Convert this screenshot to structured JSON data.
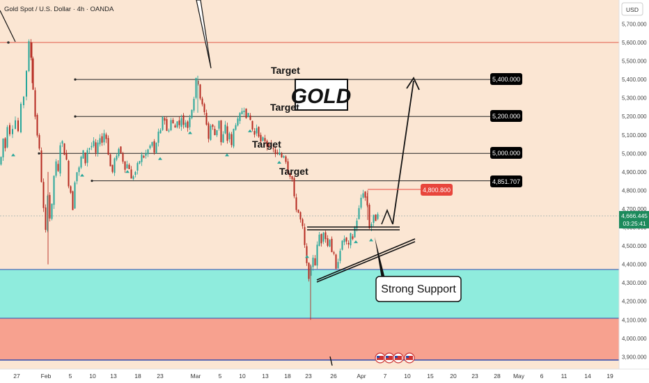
{
  "header": {
    "symbol": "Gold Spot / U.S. Dollar · 4h · OANDA",
    "currency": "USD"
  },
  "price_axis": {
    "ticks": [
      "5,700.000",
      "5,600.000",
      "5,500.000",
      "5,400.000",
      "5,300.000",
      "5,200.000",
      "5,100.000",
      "5,000.000",
      "4,900.000",
      "4,800.000",
      "4,700.000",
      "4,600.000",
      "4,500.000",
      "4,400.000",
      "4,300.000",
      "4,200.000",
      "4,100.000",
      "4,000.000",
      "3,900.000"
    ],
    "current_price": "4,666.445",
    "countdown": "03:25:41"
  },
  "time_axis": {
    "ticks": [
      "27",
      "Feb",
      "5",
      "10",
      "13",
      "18",
      "23",
      "Mar",
      "5",
      "10",
      "13",
      "18",
      "23",
      "26",
      "Apr",
      "7",
      "10",
      "15",
      "20",
      "23",
      "28",
      "May",
      "6",
      "11",
      "14",
      "19"
    ]
  },
  "annotations": {
    "title_box": "GOLD",
    "targets": [
      "Target",
      "Target",
      "Target",
      "Target"
    ],
    "target_badges": [
      "5,400.000",
      "5,200.000",
      "5,000.000",
      "4,851.707"
    ],
    "high_badge": "4,800.800",
    "support_callout": "Strong Support"
  },
  "colors": {
    "background": "#fbe6d3",
    "support_zone": "#8fecdd",
    "resistance_zone": "#f7a18f",
    "up_candle": "#26a69a",
    "down_candle": "#b5281f",
    "high_badge": "#e8453c",
    "price_badge": "#1c8a5c",
    "zone_border": "#2e4ab0",
    "top_line": "#e05a4a"
  },
  "chart_data": {
    "type": "candlestick",
    "title": "Gold Spot / U.S. Dollar · 4h · OANDA",
    "ylabel": "USD",
    "ylim": [
      3870,
      5820
    ],
    "x_ticks": [
      "27",
      "Feb",
      "5",
      "10",
      "13",
      "18",
      "23",
      "Mar",
      "5",
      "10",
      "13",
      "18",
      "23",
      "26",
      "Apr",
      "7",
      "10",
      "15",
      "20",
      "23",
      "28",
      "May",
      "6",
      "11",
      "14",
      "19"
    ],
    "path": [
      [
        0,
        4940
      ],
      [
        3,
        4980
      ],
      [
        6,
        5080
      ],
      [
        9,
        5030
      ],
      [
        12,
        5150
      ],
      [
        16,
        5110
      ],
      [
        20,
        5140
      ],
      [
        24,
        5180
      ],
      [
        28,
        5120
      ],
      [
        32,
        5260
      ],
      [
        36,
        5310
      ],
      [
        40,
        5450
      ],
      [
        43,
        5600
      ],
      [
        46,
        5520
      ],
      [
        49,
        5350
      ],
      [
        52,
        5200
      ],
      [
        55,
        5100
      ],
      [
        58,
        5020
      ],
      [
        61,
        4850
      ],
      [
        64,
        4700
      ],
      [
        67,
        4580
      ],
      [
        70,
        4780
      ],
      [
        73,
        4650
      ],
      [
        76,
        4720
      ],
      [
        79,
        4880
      ],
      [
        82,
        4950
      ],
      [
        85,
        4900
      ],
      [
        88,
        5050
      ],
      [
        91,
        5060
      ],
      [
        94,
        5000
      ],
      [
        97,
        4960
      ],
      [
        100,
        4830
      ],
      [
        103,
        4790
      ],
      [
        106,
        4700
      ],
      [
        109,
        4850
      ],
      [
        112,
        4900
      ],
      [
        115,
        4920
      ],
      [
        118,
        4980
      ],
      [
        121,
        5010
      ],
      [
        124,
        4950
      ],
      [
        127,
        5020
      ],
      [
        130,
        5030
      ],
      [
        133,
        5040
      ],
      [
        136,
        5060
      ],
      [
        139,
        5000
      ],
      [
        142,
        5050
      ],
      [
        145,
        5090
      ],
      [
        148,
        5060
      ],
      [
        151,
        5110
      ],
      [
        154,
        5080
      ],
      [
        157,
        5000
      ],
      [
        160,
        4930
      ],
      [
        163,
        4900
      ],
      [
        166,
        4970
      ],
      [
        169,
        4980
      ],
      [
        172,
        5030
      ],
      [
        175,
        5000
      ],
      [
        178,
        4960
      ],
      [
        181,
        4920
      ],
      [
        184,
        4940
      ],
      [
        187,
        4920
      ],
      [
        190,
        4860
      ],
      [
        193,
        4880
      ],
      [
        196,
        4900
      ],
      [
        199,
        4940
      ],
      [
        202,
        4960
      ],
      [
        205,
        4990
      ],
      [
        208,
        4980
      ],
      [
        211,
        5000
      ],
      [
        214,
        5020
      ],
      [
        217,
        5040
      ],
      [
        220,
        5060
      ],
      [
        223,
        5000
      ],
      [
        226,
        5060
      ],
      [
        229,
        5110
      ],
      [
        232,
        5120
      ],
      [
        235,
        5200
      ],
      [
        238,
        5180
      ],
      [
        241,
        5120
      ],
      [
        244,
        5130
      ],
      [
        247,
        5180
      ],
      [
        250,
        5160
      ],
      [
        253,
        5140
      ],
      [
        256,
        5180
      ],
      [
        259,
        5150
      ],
      [
        262,
        5200
      ],
      [
        265,
        5150
      ],
      [
        268,
        5170
      ],
      [
        271,
        5140
      ],
      [
        274,
        5200
      ],
      [
        277,
        5240
      ],
      [
        280,
        5300
      ],
      [
        283,
        5400
      ],
      [
        286,
        5380
      ],
      [
        289,
        5300
      ],
      [
        292,
        5260
      ],
      [
        295,
        5220
      ],
      [
        298,
        5160
      ],
      [
        301,
        5080
      ],
      [
        304,
        5150
      ],
      [
        307,
        5140
      ],
      [
        310,
        5100
      ],
      [
        313,
        5130
      ],
      [
        316,
        5180
      ],
      [
        319,
        5060
      ],
      [
        322,
        5100
      ],
      [
        325,
        5150
      ],
      [
        328,
        5070
      ],
      [
        331,
        5110
      ],
      [
        334,
        5040
      ],
      [
        337,
        5130
      ],
      [
        340,
        5160
      ],
      [
        343,
        5180
      ],
      [
        346,
        5210
      ],
      [
        349,
        5230
      ],
      [
        352,
        5240
      ],
      [
        355,
        5200
      ],
      [
        358,
        5210
      ],
      [
        361,
        5180
      ],
      [
        364,
        5130
      ],
      [
        367,
        5100
      ],
      [
        370,
        5140
      ],
      [
        373,
        5100
      ],
      [
        376,
        5060
      ],
      [
        379,
        5080
      ],
      [
        382,
        5070
      ],
      [
        385,
        5040
      ],
      [
        388,
        5050
      ],
      [
        391,
        5030
      ],
      [
        394,
        5020
      ],
      [
        397,
        5000
      ],
      [
        400,
        5000
      ],
      [
        403,
        5000
      ],
      [
        406,
        4980
      ],
      [
        409,
        4990
      ],
      [
        412,
        4960
      ],
      [
        415,
        4900
      ],
      [
        418,
        4880
      ],
      [
        421,
        4860
      ],
      [
        424,
        4760
      ],
      [
        427,
        4700
      ],
      [
        430,
        4680
      ],
      [
        433,
        4640
      ],
      [
        436,
        4600
      ],
      [
        439,
        4500
      ],
      [
        442,
        4400
      ],
      [
        445,
        4330
      ],
      [
        448,
        4380
      ],
      [
        451,
        4440
      ],
      [
        454,
        4400
      ],
      [
        457,
        4500
      ],
      [
        460,
        4560
      ],
      [
        463,
        4520
      ],
      [
        466,
        4580
      ],
      [
        469,
        4540
      ],
      [
        472,
        4500
      ],
      [
        475,
        4540
      ],
      [
        478,
        4470
      ],
      [
        481,
        4450
      ],
      [
        484,
        4370
      ],
      [
        487,
        4420
      ],
      [
        490,
        4480
      ],
      [
        493,
        4520
      ],
      [
        496,
        4540
      ],
      [
        499,
        4520
      ],
      [
        502,
        4500
      ],
      [
        505,
        4560
      ],
      [
        508,
        4540
      ],
      [
        511,
        4600
      ],
      [
        514,
        4640
      ],
      [
        517,
        4700
      ],
      [
        520,
        4760
      ],
      [
        523,
        4790
      ],
      [
        526,
        4760
      ],
      [
        529,
        4720
      ],
      [
        532,
        4600
      ],
      [
        535,
        4620
      ],
      [
        538,
        4660
      ],
      [
        541,
        4640
      ],
      [
        544,
        4680
      ]
    ],
    "horizontal_lines": [
      {
        "label": "Target",
        "value": 5400,
        "badge": "5,400.000"
      },
      {
        "label": "Target",
        "value": 5200,
        "badge": "5,200.000"
      },
      {
        "label": "Target",
        "value": 5000,
        "badge": "5,000.000"
      },
      {
        "label": "Target",
        "value": 4851.707,
        "badge": "4,851.707"
      }
    ],
    "zones": [
      {
        "from": 4100,
        "to": 4370
      },
      {
        "from": 3900,
        "to": 4100
      }
    ],
    "top_line": 5600,
    "last_price": 4666.445,
    "high_marker": 4800.8
  }
}
